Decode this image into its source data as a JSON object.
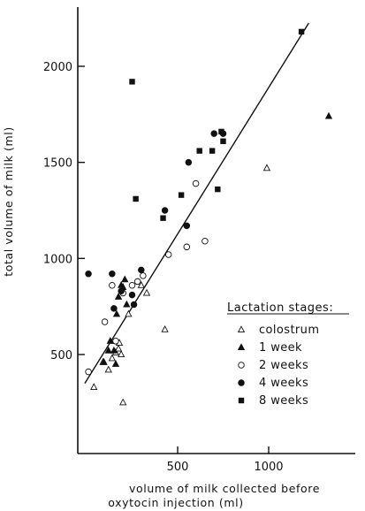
{
  "chart_data": {
    "type": "scatter",
    "xlabel_lines": [
      "volume of milk collected before",
      "oxytocin injection (ml)"
    ],
    "ylabel": "total volume of milk (ml)",
    "xlim": [
      -20,
      1340
    ],
    "ylim": [
      150,
      2300
    ],
    "xticks": [
      500,
      1000
    ],
    "yticks": [
      500,
      1000,
      1500,
      2000
    ],
    "legend_title": "Lactation stages:",
    "legend_position": "lower-right",
    "regression_line": {
      "x": [
        -10,
        1220
      ],
      "y": [
        350,
        2225
      ]
    },
    "series": [
      {
        "name": "colostrum",
        "marker": "open-triangle",
        "points": [
          [
            40,
            330
          ],
          [
            90,
            460
          ],
          [
            120,
            420
          ],
          [
            140,
            480
          ],
          [
            160,
            510
          ],
          [
            175,
            530
          ],
          [
            180,
            560
          ],
          [
            190,
            500
          ],
          [
            200,
            250
          ],
          [
            230,
            710
          ],
          [
            300,
            860
          ],
          [
            330,
            820
          ],
          [
            430,
            630
          ],
          [
            990,
            1470
          ]
        ]
      },
      {
        "name": "1 week",
        "marker": "filled-triangle",
        "points": [
          [
            95,
            460
          ],
          [
            120,
            520
          ],
          [
            130,
            570
          ],
          [
            150,
            520
          ],
          [
            160,
            450
          ],
          [
            165,
            710
          ],
          [
            175,
            800
          ],
          [
            190,
            860
          ],
          [
            200,
            850
          ],
          [
            210,
            890
          ],
          [
            220,
            760
          ],
          [
            1330,
            1740
          ]
        ]
      },
      {
        "name": "2 weeks",
        "marker": "open-circle",
        "points": [
          [
            10,
            410
          ],
          [
            100,
            670
          ],
          [
            140,
            860
          ],
          [
            160,
            570
          ],
          [
            200,
            820
          ],
          [
            250,
            860
          ],
          [
            280,
            880
          ],
          [
            310,
            910
          ],
          [
            450,
            1020
          ],
          [
            550,
            1060
          ],
          [
            600,
            1390
          ],
          [
            650,
            1090
          ]
        ]
      },
      {
        "name": "4 weeks",
        "marker": "filled-circle",
        "points": [
          [
            10,
            920
          ],
          [
            140,
            920
          ],
          [
            150,
            740
          ],
          [
            190,
            830
          ],
          [
            250,
            810
          ],
          [
            260,
            760
          ],
          [
            300,
            940
          ],
          [
            430,
            1250
          ],
          [
            550,
            1170
          ],
          [
            560,
            1500
          ],
          [
            700,
            1650
          ],
          [
            750,
            1650
          ]
        ]
      },
      {
        "name": "8 weeks",
        "marker": "filled-square",
        "points": [
          [
            250,
            1920
          ],
          [
            270,
            1310
          ],
          [
            420,
            1210
          ],
          [
            520,
            1330
          ],
          [
            620,
            1560
          ],
          [
            690,
            1560
          ],
          [
            720,
            1360
          ],
          [
            740,
            1660
          ],
          [
            750,
            1610
          ],
          [
            1180,
            2180
          ]
        ]
      }
    ]
  }
}
